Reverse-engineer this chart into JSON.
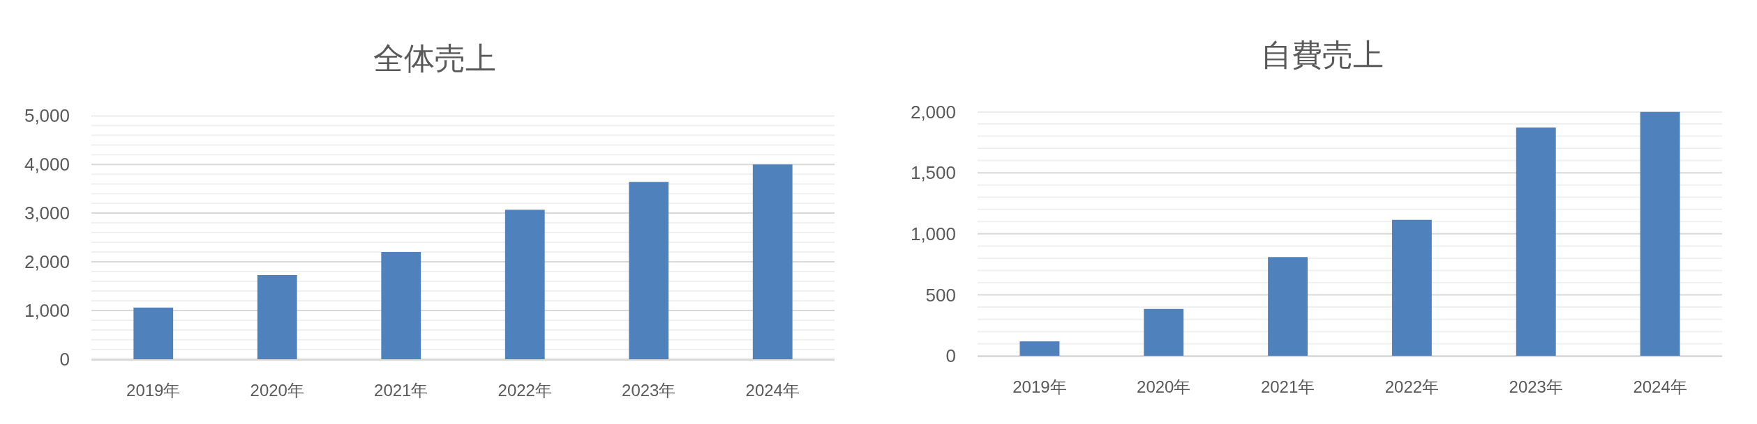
{
  "chart_data": [
    {
      "type": "bar",
      "title": "全体売上",
      "categories": [
        "2019年",
        "2020年",
        "2021年",
        "2022年",
        "2023年",
        "2024年"
      ],
      "values": [
        1060,
        1730,
        2200,
        3070,
        3640,
        4000
      ],
      "color": "#4f81bd",
      "ylim": [
        0,
        5000
      ],
      "yticks": [
        0,
        {
          "value": 200,
          "label": null
        },
        {
          "value": 400,
          "label": null
        },
        {
          "value": 600,
          "label": null
        },
        {
          "value": 800,
          "label": null
        },
        {
          "value": 1000,
          "label": "1,000"
        },
        {
          "value": 1200,
          "label": null
        },
        {
          "value": 1400,
          "label": null
        },
        {
          "value": 1600,
          "label": null
        },
        {
          "value": 1800,
          "label": null
        },
        {
          "value": 2000,
          "label": "2,000"
        },
        {
          "value": 2200,
          "label": null
        },
        {
          "value": 2400,
          "label": null
        },
        {
          "value": 2600,
          "label": null
        },
        {
          "value": 2800,
          "label": null
        },
        {
          "value": 3000,
          "label": "3,000"
        },
        {
          "value": 3200,
          "label": null
        },
        {
          "value": 3400,
          "label": null
        },
        {
          "value": 3600,
          "label": null
        },
        {
          "value": 3800,
          "label": null
        },
        {
          "value": 4000,
          "label": "4,000"
        },
        {
          "value": 4200,
          "label": null
        },
        {
          "value": 4400,
          "label": null
        },
        {
          "value": 4600,
          "label": null
        },
        {
          "value": 4800,
          "label": null
        },
        {
          "value": 5000,
          "label": "5,000"
        }
      ],
      "grid": "y"
    },
    {
      "type": "bar",
      "title": "自費売上",
      "categories": [
        "2019年",
        "2020年",
        "2021年",
        "2022年",
        "2023年",
        "2024年"
      ],
      "values": [
        120,
        385,
        810,
        1115,
        1870,
        2000
      ],
      "color": "#4f81bd",
      "ylim": [
        0,
        2000
      ],
      "yticks": [
        0,
        {
          "value": 100,
          "label": null
        },
        {
          "value": 200,
          "label": null
        },
        {
          "value": 300,
          "label": null
        },
        {
          "value": 400,
          "label": null
        },
        500,
        {
          "value": 600,
          "label": null
        },
        {
          "value": 700,
          "label": null
        },
        {
          "value": 800,
          "label": null
        },
        {
          "value": 900,
          "label": null
        },
        {
          "value": 1000,
          "label": "1,000"
        },
        {
          "value": 1100,
          "label": null
        },
        {
          "value": 1200,
          "label": null
        },
        {
          "value": 1300,
          "label": null
        },
        {
          "value": 1400,
          "label": null
        },
        {
          "value": 1500,
          "label": "1,500"
        },
        {
          "value": 1600,
          "label": null
        },
        {
          "value": 1700,
          "label": null
        },
        {
          "value": 1800,
          "label": null
        },
        {
          "value": 1900,
          "label": null
        },
        {
          "value": 2000,
          "label": "2,000"
        }
      ],
      "grid": "y"
    }
  ]
}
